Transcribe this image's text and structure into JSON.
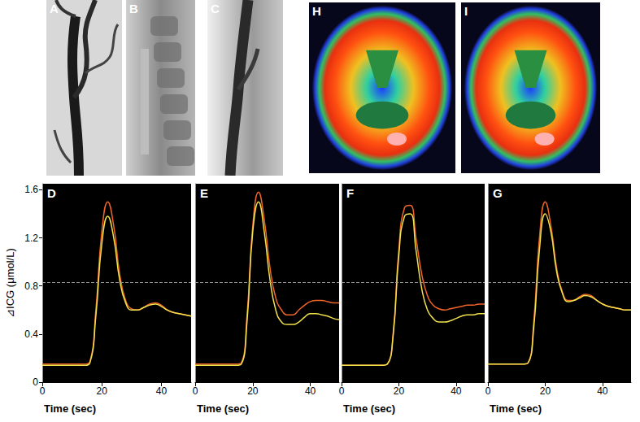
{
  "image_panels": [
    "A",
    "B",
    "C",
    "H",
    "I"
  ],
  "chart_data": [
    {
      "type": "line",
      "title": "D",
      "x_label": "Time (sec)",
      "y_label": "⊿ICG (μmol/L)",
      "x": [
        0,
        2,
        4,
        6,
        8,
        10,
        12,
        14,
        16,
        18,
        20,
        22,
        24,
        26,
        28,
        30,
        32,
        34,
        36,
        38,
        40,
        42,
        44,
        46,
        48,
        50
      ],
      "xlim": [
        0,
        50
      ],
      "xticks": [
        0,
        20,
        40
      ],
      "ylim": [
        0,
        1.65
      ],
      "yticks": [
        0,
        0.4,
        0.8,
        1.2,
        1.6
      ],
      "threshold": 0.83,
      "series": [
        {
          "color": "#f0642a",
          "values": [
            0.15,
            0.15,
            0.15,
            0.15,
            0.15,
            0.15,
            0.15,
            0.15,
            0.17,
            0.6,
            1.25,
            1.5,
            1.3,
            0.9,
            0.68,
            0.61,
            0.6,
            0.62,
            0.65,
            0.66,
            0.64,
            0.6,
            0.58,
            0.57,
            0.56,
            0.55
          ]
        },
        {
          "color": "#f0e04a",
          "values": [
            0.14,
            0.14,
            0.14,
            0.14,
            0.14,
            0.14,
            0.14,
            0.14,
            0.16,
            0.55,
            1.15,
            1.38,
            1.2,
            0.85,
            0.66,
            0.6,
            0.6,
            0.62,
            0.64,
            0.65,
            0.63,
            0.6,
            0.58,
            0.57,
            0.56,
            0.55
          ]
        }
      ]
    },
    {
      "type": "line",
      "title": "E",
      "x_label": "Time (sec)",
      "tick_labels": "x",
      "x": [
        0,
        2,
        4,
        6,
        8,
        10,
        12,
        14,
        16,
        18,
        20,
        22,
        24,
        26,
        28,
        30,
        32,
        34,
        36,
        38,
        40,
        42,
        44,
        46,
        48,
        50
      ],
      "xlim": [
        0,
        50
      ],
      "xticks": [
        0,
        20,
        40
      ],
      "ylim": [
        0,
        1.65
      ],
      "yticks": [
        0,
        0.4,
        0.8,
        1.2,
        1.6
      ],
      "threshold": 0.83,
      "series": [
        {
          "color": "#f0642a",
          "values": [
            0.15,
            0.15,
            0.15,
            0.15,
            0.15,
            0.15,
            0.15,
            0.15,
            0.16,
            0.55,
            1.3,
            1.58,
            1.35,
            0.95,
            0.7,
            0.6,
            0.56,
            0.56,
            0.6,
            0.64,
            0.67,
            0.68,
            0.68,
            0.67,
            0.66,
            0.66
          ]
        },
        {
          "color": "#f0e04a",
          "values": [
            0.14,
            0.14,
            0.14,
            0.14,
            0.14,
            0.14,
            0.14,
            0.14,
            0.15,
            0.5,
            1.25,
            1.5,
            1.25,
            0.85,
            0.6,
            0.5,
            0.48,
            0.48,
            0.5,
            0.54,
            0.57,
            0.57,
            0.56,
            0.55,
            0.53,
            0.52
          ]
        }
      ]
    },
    {
      "type": "line",
      "title": "F",
      "x_label": "Time (sec)",
      "tick_labels": "x",
      "x": [
        0,
        2,
        4,
        6,
        8,
        10,
        12,
        14,
        16,
        18,
        20,
        22,
        24,
        26,
        28,
        30,
        32,
        34,
        36,
        38,
        40,
        42,
        44,
        46,
        48,
        50
      ],
      "xlim": [
        0,
        50
      ],
      "xticks": [
        0,
        20,
        40
      ],
      "ylim": [
        0,
        1.65
      ],
      "yticks": [
        0,
        0.4,
        0.8,
        1.2,
        1.6
      ],
      "threshold": 0.83,
      "series": [
        {
          "color": "#f0642a",
          "values": [
            0.14,
            0.14,
            0.14,
            0.14,
            0.14,
            0.14,
            0.14,
            0.14,
            0.15,
            0.4,
            1.1,
            1.45,
            1.47,
            1.2,
            0.9,
            0.72,
            0.64,
            0.61,
            0.6,
            0.61,
            0.62,
            0.63,
            0.64,
            0.64,
            0.65,
            0.65
          ]
        },
        {
          "color": "#f0e04a",
          "values": [
            0.14,
            0.14,
            0.14,
            0.14,
            0.14,
            0.14,
            0.14,
            0.14,
            0.15,
            0.38,
            1.05,
            1.38,
            1.4,
            1.1,
            0.78,
            0.6,
            0.53,
            0.5,
            0.5,
            0.51,
            0.53,
            0.55,
            0.56,
            0.56,
            0.57,
            0.57
          ]
        }
      ]
    },
    {
      "type": "line",
      "title": "G",
      "x_label": "Time (sec)",
      "tick_labels": "x",
      "x": [
        0,
        2,
        4,
        6,
        8,
        10,
        12,
        14,
        16,
        18,
        20,
        22,
        24,
        26,
        28,
        30,
        32,
        34,
        36,
        38,
        40,
        42,
        44,
        46,
        48,
        50
      ],
      "xlim": [
        0,
        50
      ],
      "xticks": [
        0,
        20,
        40
      ],
      "ylim": [
        0,
        1.65
      ],
      "yticks": [
        0,
        0.4,
        0.8,
        1.2,
        1.6
      ],
      "threshold": 0.83,
      "series": [
        {
          "color": "#f0642a",
          "values": [
            0.15,
            0.15,
            0.15,
            0.15,
            0.15,
            0.15,
            0.15,
            0.16,
            0.5,
            1.2,
            1.5,
            1.3,
            0.95,
            0.75,
            0.68,
            0.68,
            0.71,
            0.73,
            0.72,
            0.68,
            0.65,
            0.63,
            0.62,
            0.61,
            0.6,
            0.6
          ]
        },
        {
          "color": "#f0e04a",
          "values": [
            0.15,
            0.15,
            0.15,
            0.15,
            0.15,
            0.15,
            0.15,
            0.16,
            0.45,
            1.1,
            1.4,
            1.25,
            0.92,
            0.74,
            0.67,
            0.68,
            0.7,
            0.72,
            0.71,
            0.68,
            0.65,
            0.63,
            0.62,
            0.61,
            0.6,
            0.6
          ]
        }
      ]
    }
  ]
}
